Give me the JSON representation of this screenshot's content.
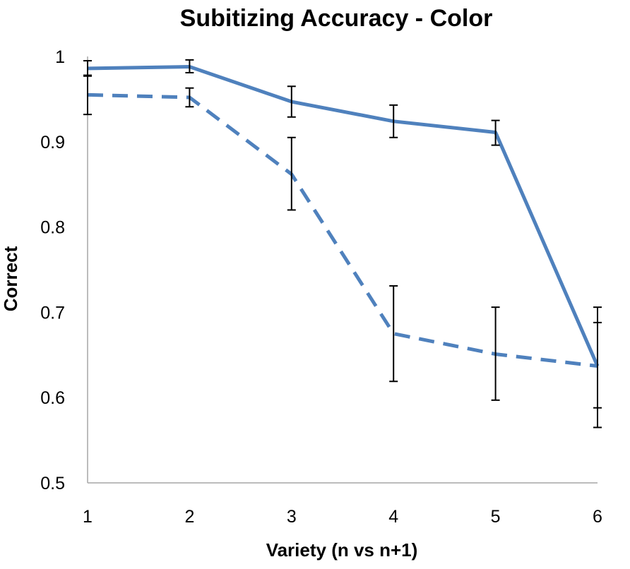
{
  "chart_data": {
    "type": "line",
    "title": "Subitizing Accuracy - Color",
    "xlabel": "Variety (n vs n+1)",
    "ylabel": "Correct",
    "x": [
      1,
      2,
      3,
      4,
      5,
      6
    ],
    "xlim": [
      1,
      6
    ],
    "ylim": [
      0.5,
      1
    ],
    "yticks": [
      "0.5",
      "0.6",
      "0.7",
      "0.8",
      "0.9",
      "1"
    ],
    "xticks": [
      "1",
      "2",
      "3",
      "4",
      "5",
      "6"
    ],
    "grid": false,
    "legend": "none",
    "series": [
      {
        "style": "solid",
        "color": "#4f81bd",
        "values": [
          0.986,
          0.988,
          0.947,
          0.924,
          0.911,
          0.637
        ],
        "error_low": [
          0.977,
          0.981,
          0.929,
          0.905,
          0.896,
          0.588
        ],
        "error_high": [
          0.995,
          0.996,
          0.965,
          0.943,
          0.925,
          0.688
        ]
      },
      {
        "style": "dashed",
        "color": "#4f81bd",
        "values": [
          0.955,
          0.952,
          0.862,
          0.675,
          0.651,
          0.637
        ],
        "error_low": [
          0.932,
          0.941,
          0.82,
          0.619,
          0.597,
          0.565
        ],
        "error_high": [
          0.978,
          0.963,
          0.905,
          0.731,
          0.706,
          0.706
        ]
      }
    ],
    "errorbar_color": "#000000",
    "axis_color": "#a6a6a6"
  }
}
